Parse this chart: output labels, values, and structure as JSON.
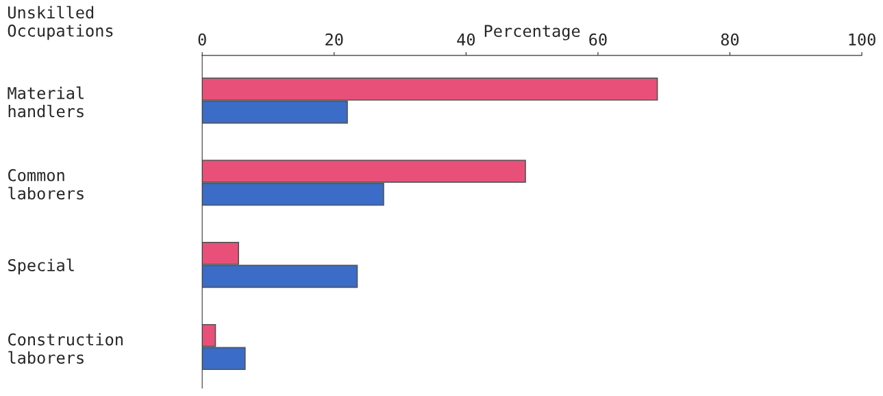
{
  "chart_data": {
    "type": "bar",
    "orientation": "horizontal",
    "xlabel": "Percentage",
    "annotations": [
      "Unskilled\nOccupations"
    ],
    "categories": [
      "Material\nhandlers",
      "Common\nlaborers",
      "Special",
      "Construction\nlaborers"
    ],
    "series": [
      {
        "color": "#e8507a",
        "values": [
          69,
          49,
          5.5,
          2
        ]
      },
      {
        "color": "#3a6cc8",
        "values": [
          22,
          27.5,
          23.5,
          6.5
        ]
      }
    ],
    "xlim": [
      0,
      100
    ],
    "xticks": [
      0,
      20,
      40,
      60,
      80,
      100
    ],
    "grid": false,
    "legend": false
  }
}
